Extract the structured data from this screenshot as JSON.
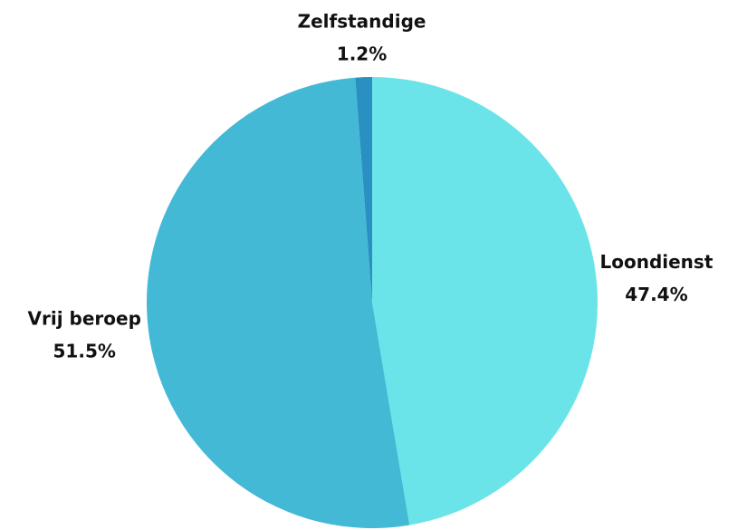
{
  "chart_data": {
    "type": "pie",
    "categories": [
      "Loondienst",
      "Vrij beroep",
      "Zelfstandige"
    ],
    "values": [
      47.4,
      51.5,
      1.2
    ],
    "value_labels": [
      "47.4%",
      "51.5%",
      "1.2%"
    ],
    "colors": [
      "#6ae4e9",
      "#43b9d6",
      "#2a90c1"
    ]
  }
}
